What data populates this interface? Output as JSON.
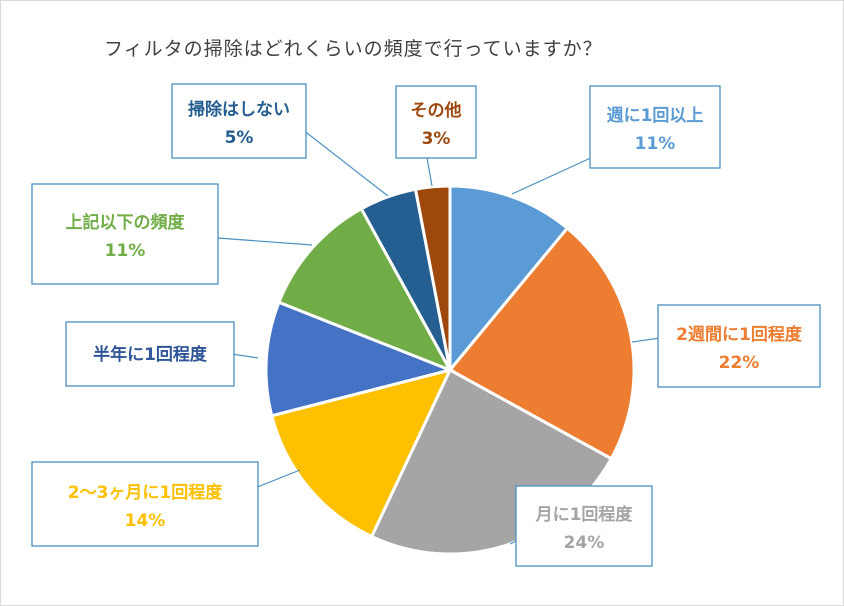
{
  "colors": {
    "weekly": "#5b9bd5",
    "biweekly": "#ed7d31",
    "monthly": "#a5a5a5",
    "two_three_months": "#ffc000",
    "half_year": "#4472c4",
    "less_often": "#70ad47",
    "no_cleaning": "#255e91",
    "other": "#9e480e",
    "callout_border": "#4a90c0"
  },
  "chart_data": {
    "type": "pie",
    "title": "フィルタの掃除はどれくらいの頻度で行っていますか？",
    "slices": [
      {
        "label": "週に1回以上",
        "value": 11,
        "value_label": "11%",
        "color_key": "weekly",
        "label_color": "#5b9bd5"
      },
      {
        "label": "2週間に1回程度",
        "value": 22,
        "value_label": "22%",
        "color_key": "biweekly",
        "label_color": "#ed7d31"
      },
      {
        "label": "月に1回程度",
        "value": 24,
        "value_label": "24%",
        "color_key": "monthly",
        "label_color": "#a5a5a5"
      },
      {
        "label": "2～3ヶ月に1回程度",
        "value": 14,
        "value_label": "14%",
        "color_key": "two_three_months",
        "label_color": "#ffc000"
      },
      {
        "label": "半年に1回程度",
        "value": 10,
        "value_label": "",
        "color_key": "half_year",
        "label_color": "#2e5597"
      },
      {
        "label": "上記以下の頻度",
        "value": 11,
        "value_label": "11%",
        "color_key": "less_often",
        "label_color": "#70ad47"
      },
      {
        "label": "掃除はしない",
        "value": 5,
        "value_label": "5%",
        "color_key": "no_cleaning",
        "label_color": "#255e91"
      },
      {
        "label": "その他",
        "value": 3,
        "value_label": "3%",
        "color_key": "other",
        "label_color": "#9e480e"
      }
    ],
    "start_angle_deg": 0,
    "direction": "clockwise"
  }
}
